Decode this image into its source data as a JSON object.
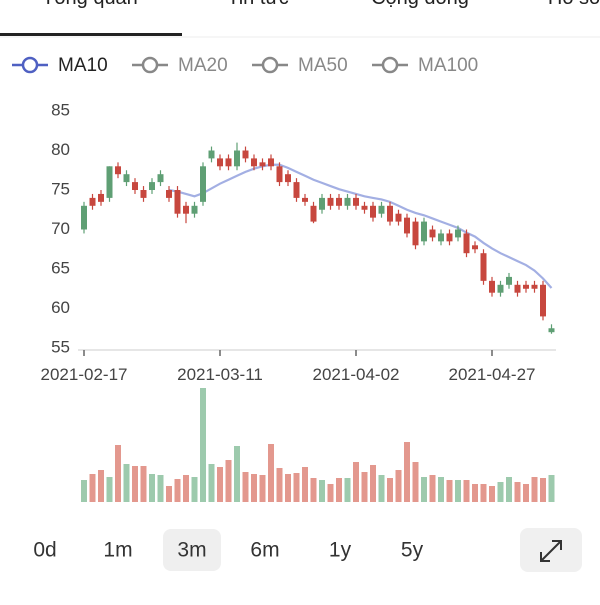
{
  "tabs": [
    "Tổng quan",
    "Tin tức",
    "Cộng đồng",
    "Hồ sơ"
  ],
  "ranges": [
    "0d",
    "1m",
    "3m",
    "6m",
    "1y",
    "5y"
  ],
  "selected_range": "3m",
  "chart_data": {
    "type": "candlestick",
    "categories": [
      "2021-02-17",
      null,
      null,
      null,
      null,
      null,
      null,
      null,
      null,
      null,
      null,
      null,
      null,
      null,
      null,
      null,
      "2021-03-11",
      null,
      null,
      null,
      null,
      null,
      null,
      null,
      null,
      null,
      null,
      null,
      null,
      null,
      null,
      null,
      "2021-04-02",
      null,
      null,
      null,
      null,
      null,
      null,
      null,
      null,
      null,
      null,
      null,
      null,
      null,
      null,
      null,
      "2021-04-27",
      null,
      null,
      null,
      null,
      null,
      null,
      null
    ],
    "open": [
      70,
      74,
      74.5,
      74,
      78,
      76,
      76,
      75,
      75,
      76,
      75,
      75,
      73,
      72,
      73.5,
      79,
      79,
      79,
      78,
      80,
      79,
      78.5,
      79,
      78,
      77,
      76,
      74,
      73,
      72.5,
      74,
      74,
      73,
      74,
      73,
      73,
      72,
      73,
      72,
      71.5,
      71,
      68.5,
      70,
      68.5,
      69.5,
      69,
      69.5,
      68,
      67,
      63.5,
      62,
      63,
      63,
      63,
      63,
      63,
      57
    ],
    "close": [
      73,
      73,
      73.5,
      78,
      77,
      77,
      75,
      74,
      76,
      77,
      74,
      72,
      72,
      73,
      78,
      80,
      78,
      78,
      80,
      79,
      78,
      78,
      78,
      76,
      76,
      74,
      73.5,
      71,
      74,
      73,
      73,
      74,
      73,
      72.5,
      71.5,
      73,
      71,
      71,
      69.5,
      68,
      71,
      69,
      69.5,
      68.5,
      70,
      67,
      67.5,
      63.5,
      62,
      63,
      64,
      62,
      62.5,
      62.5,
      59,
      57.5
    ],
    "high": [
      73.5,
      74.5,
      75,
      78,
      78.5,
      77.5,
      76.5,
      75.5,
      76.5,
      77.5,
      75.5,
      75.5,
      73.5,
      73.5,
      78.5,
      80.5,
      79.5,
      79.5,
      81,
      80.5,
      79.5,
      79,
      79.5,
      78.5,
      77.5,
      76.5,
      74.5,
      73.5,
      74.5,
      74.5,
      74.5,
      74.5,
      74.5,
      73.5,
      73.5,
      73.5,
      73.5,
      72.5,
      72,
      71.5,
      71.5,
      70.5,
      70,
      70,
      70.5,
      70,
      68.5,
      67.5,
      64,
      63.5,
      64.5,
      63.5,
      63.5,
      63.5,
      63.5,
      58
    ],
    "low": [
      69.5,
      72.5,
      73,
      73.5,
      76.5,
      75.5,
      74.5,
      73.5,
      74.5,
      75.5,
      73.5,
      71.5,
      70.8,
      71.5,
      73,
      78.5,
      77.5,
      77.5,
      77.5,
      78.5,
      77.5,
      77.5,
      77.5,
      75.5,
      75.5,
      73.5,
      73,
      70.8,
      72,
      72.5,
      72.5,
      72.5,
      72.5,
      72,
      71,
      71.5,
      70.5,
      70.5,
      69,
      67.5,
      68,
      68.5,
      68,
      68,
      68.5,
      66.5,
      67,
      63,
      61.5,
      61.5,
      62.5,
      61.5,
      62,
      62,
      58.5,
      56.8
    ],
    "up_color": "#5f9f74",
    "down_color": "#c7473e",
    "volume": [
      22,
      28,
      32,
      25,
      57,
      38,
      36,
      36,
      28,
      27,
      16,
      23,
      27,
      25,
      114,
      38,
      35,
      42,
      56,
      30,
      28,
      27,
      58,
      34,
      28,
      29,
      35,
      24,
      22,
      18,
      24,
      24,
      40,
      30,
      37,
      27,
      24,
      32,
      60,
      40,
      25,
      27,
      25,
      22,
      22,
      22,
      18,
      18,
      16,
      20,
      25,
      20,
      18,
      25,
      24,
      27
    ],
    "volume_up_color": "#9dcaad",
    "volume_down_color": "#e3988e",
    "series": [
      {
        "name": "MA10",
        "color": "#a3afe3",
        "legend_color": "#4f60c2",
        "values": [
          null,
          null,
          null,
          null,
          null,
          null,
          null,
          null,
          null,
          null,
          75,
          74.8,
          74.5,
          74.2,
          74.6,
          75.2,
          75.8,
          76.3,
          76.8,
          77.3,
          77.7,
          78,
          78.2,
          78.2,
          77.8,
          77.3,
          76.8,
          76.3,
          75.9,
          75.5,
          75.1,
          74.8,
          74.5,
          74.2,
          74,
          73.8,
          73.5,
          73,
          72.5,
          72.1,
          71.8,
          71.4,
          71,
          70.6,
          70.2,
          69.6,
          69.1,
          68.3,
          67.6,
          67,
          66.5,
          66,
          65.5,
          64.8,
          63.8,
          62.6
        ]
      },
      {
        "name": "MA20",
        "color": "#888888"
      },
      {
        "name": "MA50",
        "color": "#888888"
      },
      {
        "name": "MA100",
        "color": "#888888"
      }
    ],
    "ylim": [
      55,
      85
    ],
    "yticks": [
      55,
      60,
      65,
      70,
      75,
      80,
      85
    ]
  }
}
